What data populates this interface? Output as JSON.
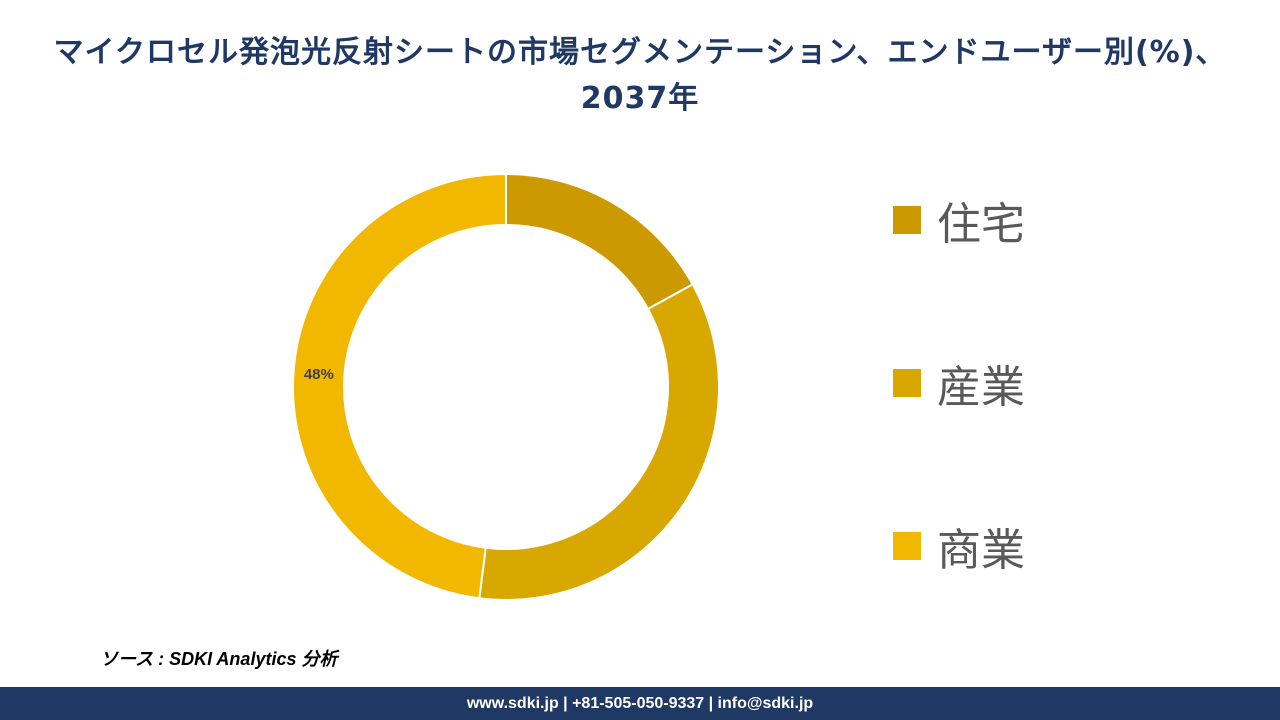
{
  "title": "マイクロセル発泡光反射シートの市場セグメンテーション、エンドユーザー別(%)、2037年",
  "chart_data": {
    "type": "pie",
    "style": "donut",
    "categories": [
      "住宅",
      "産業",
      "商業"
    ],
    "values": [
      17,
      35,
      48
    ],
    "colors": [
      "#cc9a00",
      "#d9a800",
      "#f2b800"
    ],
    "data_labels": [
      "",
      "",
      "48%"
    ],
    "legend_position": "right"
  },
  "source": "ソース : SDKI Analytics 分析",
  "footer": "www.sdki.jp | +81-505-050-9337 | info@sdki.jp"
}
